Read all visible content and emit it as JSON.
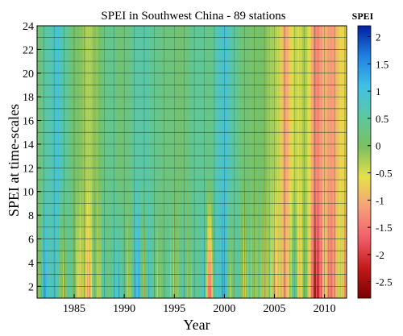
{
  "chart_data": {
    "type": "heatmap",
    "title": "SPEI in Southwest China - 89 stations",
    "xlabel": "Year",
    "ylabel": "SPEI at time-scales",
    "xlim": [
      1981.3,
      2012.2
    ],
    "ylim": [
      1,
      24
    ],
    "x_ticks": [
      1985,
      1990,
      1995,
      2000,
      2005,
      2010
    ],
    "x_tick_labels": [
      "1985",
      "1990",
      "1995",
      "2000",
      "2005",
      "2010"
    ],
    "y_ticks": [
      2,
      4,
      6,
      8,
      10,
      12,
      14,
      16,
      18,
      20,
      22,
      24
    ],
    "y_tick_labels": [
      "2",
      "4",
      "6",
      "8",
      "10",
      "12",
      "14",
      "16",
      "18",
      "20",
      "22",
      "24"
    ],
    "grid": true,
    "colorbar": {
      "title": "SPEI",
      "range": [
        -2.8,
        2.2
      ],
      "ticks": [
        2,
        1.5,
        1,
        0.5,
        0,
        -0.5,
        -1,
        -1.5,
        -2,
        -2.5
      ],
      "tick_labels": [
        "2",
        "1.5",
        "1",
        "0.5",
        "0",
        "-0.5",
        "-1",
        "-1.5",
        "-2",
        "-2.5"
      ],
      "colors": [
        "#7a0000",
        "#c41a1a",
        "#f0606a",
        "#f5a07a",
        "#e6e04a",
        "#7cc060",
        "#5cc8a0",
        "#40c0e8",
        "#2080e0",
        "#0020a0"
      ]
    },
    "series": [
      {
        "x": [
          1981.5,
          1982.0,
          1982.5,
          1983.0,
          1983.5,
          1984.0,
          1984.5,
          1985.0,
          1985.5,
          1986.0,
          1986.5,
          1987.0,
          1987.5,
          1988.0,
          1988.5,
          1989.0,
          1989.5,
          1990.0,
          1990.5,
          1991.0,
          1991.5,
          1992.0,
          1992.5,
          1993.0,
          1993.5,
          1994.0,
          1994.5,
          1995.0,
          1995.5,
          1996.0,
          1996.5,
          1997.0,
          1997.5,
          1998.0,
          1998.5,
          1999.0,
          1999.5,
          2000.0,
          2000.5,
          2001.0,
          2001.5,
          2002.0,
          2002.5,
          2003.0,
          2003.5,
          2004.0,
          2004.5,
          2005.0,
          2005.5,
          2006.0,
          2006.5,
          2007.0,
          2007.5,
          2008.0,
          2008.5,
          2009.0,
          2009.5,
          2010.0,
          2010.5,
          2011.0,
          2011.5,
          2012.0
        ],
        "spei_long": [
          0.2,
          0.5,
          0.6,
          0.8,
          0.9,
          0.6,
          0.3,
          0.1,
          0.0,
          -0.2,
          -0.3,
          -0.2,
          0.0,
          0.3,
          0.4,
          0.3,
          0.2,
          0.2,
          0.3,
          0.5,
          0.6,
          0.6,
          0.5,
          0.4,
          0.3,
          0.3,
          0.2,
          0.2,
          0.1,
          0.2,
          0.3,
          0.4,
          0.5,
          0.4,
          0.3,
          0.5,
          0.8,
          1.0,
          0.7,
          0.5,
          0.3,
          0.2,
          0.1,
          0.0,
          0.1,
          0.0,
          -0.2,
          -0.3,
          -0.4,
          -1.2,
          -0.8,
          -0.4,
          -0.5,
          -0.2,
          -0.6,
          -1.4,
          -1.3,
          -0.9,
          -1.2,
          -1.1,
          -0.7,
          -0.6
        ],
        "spei_short": [
          0.0,
          1.3,
          0.7,
          0.9,
          0.2,
          -0.2,
          0.4,
          0.1,
          -0.8,
          -0.2,
          -1.3,
          0.3,
          -0.4,
          0.8,
          0.2,
          0.5,
          1.1,
          0.3,
          -0.3,
          0.8,
          1.2,
          -0.4,
          0.9,
          0.3,
          -0.2,
          0.6,
          0.4,
          -0.3,
          0.2,
          0.7,
          -0.1,
          0.3,
          0.6,
          0.9,
          -1.9,
          0.4,
          0.9,
          1.3,
          -0.2,
          0.2,
          0.5,
          -0.5,
          0.3,
          -0.2,
          0.2,
          -0.6,
          0.1,
          -1.1,
          -0.5,
          -1.3,
          -0.3,
          0.4,
          -0.8,
          0.2,
          -0.7,
          -2.3,
          -1.9,
          -0.6,
          -1.6,
          -1.2,
          -0.4,
          -0.8
        ]
      }
    ]
  }
}
